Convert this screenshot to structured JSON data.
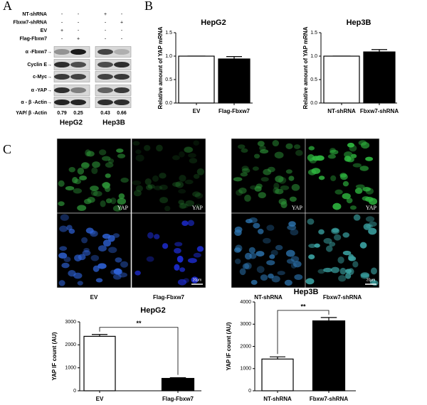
{
  "panel_labels": [
    "A",
    "B",
    "C"
  ],
  "blot": {
    "conditions": [
      {
        "label": "NT-shRNA",
        "signs": [
          "-",
          "-",
          "+",
          "-"
        ]
      },
      {
        "label": "Fbxw7-shRNA",
        "signs": [
          "-",
          "-",
          "-",
          "+"
        ]
      },
      {
        "label": "EV",
        "signs": [
          "+",
          "-",
          "-",
          "-"
        ]
      },
      {
        "label": "Flag-Fbxw7",
        "signs": [
          "-",
          "+",
          "-",
          "-"
        ]
      }
    ],
    "proteins": [
      "α -Fbxw7→",
      "Cyclin E→",
      "c-Myc→",
      "α -YAP→",
      "α - β -Actin→"
    ],
    "ratio_label": "YAP/ β -Actin",
    "ratios": [
      0.79,
      0.25,
      0.43,
      0.66
    ],
    "cell_lines": [
      "HepG2",
      "Hep3B"
    ]
  },
  "microscopy": {
    "channel_label": "YAP",
    "scale_bar": "20μm",
    "labels": [
      "EV",
      "Flag-Fbxw7",
      "NT-shRNA",
      "Fbxw7-shRNA"
    ]
  },
  "chart_data": [
    {
      "type": "bar",
      "title": "HepG2",
      "ylabel": "Relative amount of YAP mRNA",
      "categories": [
        "EV",
        "Flag-Fbxw7"
      ],
      "values": [
        1.0,
        0.94
      ],
      "errors": [
        0,
        0.05
      ],
      "colors": [
        "#ffffff",
        "#000000"
      ],
      "ylim": [
        0,
        1.5
      ],
      "yticks": [
        {
          "value": 0,
          "label": "0.0"
        },
        {
          "value": 0.5,
          "label": "0.5"
        },
        {
          "value": 1,
          "label": "1.0"
        },
        {
          "value": 1.5,
          "label": "1.5"
        }
      ]
    },
    {
      "type": "bar",
      "title": "Hep3B",
      "ylabel": "Relative amount of YAP mRNA",
      "categories": [
        "NT-shRNA",
        "Fbxw7-shRNA"
      ],
      "values": [
        1.0,
        1.09
      ],
      "errors": [
        0,
        0.05
      ],
      "colors": [
        "#ffffff",
        "#000000"
      ],
      "ylim": [
        0,
        1.5
      ],
      "yticks": [
        {
          "value": 0,
          "label": "0.0"
        },
        {
          "value": 0.5,
          "label": "0.5"
        },
        {
          "value": 1,
          "label": "1.0"
        },
        {
          "value": 1.5,
          "label": "1.5"
        }
      ]
    },
    {
      "type": "bar",
      "title": "HepG2",
      "ylabel": "YAP IF count (AU)",
      "categories": [
        "EV",
        "Flag-Fbxw7"
      ],
      "values": [
        2370,
        540
      ],
      "errors": [
        80,
        30
      ],
      "colors": [
        "#ffffff",
        "#000000"
      ],
      "ylim": [
        0,
        3000
      ],
      "yticks": [
        0,
        1000,
        2000,
        3000
      ],
      "annotation": "**"
    },
    {
      "type": "bar",
      "title": "Hep3B",
      "ylabel": "YAP IF count (AU)",
      "categories": [
        "NT-shRNA",
        "Fbxw7-shRNA"
      ],
      "values": [
        1430,
        3150
      ],
      "errors": [
        100,
        150
      ],
      "colors": [
        "#ffffff",
        "#000000"
      ],
      "ylim": [
        0,
        4000
      ],
      "yticks": [
        0,
        1000,
        2000,
        3000,
        4000
      ],
      "annotation": "**"
    }
  ]
}
